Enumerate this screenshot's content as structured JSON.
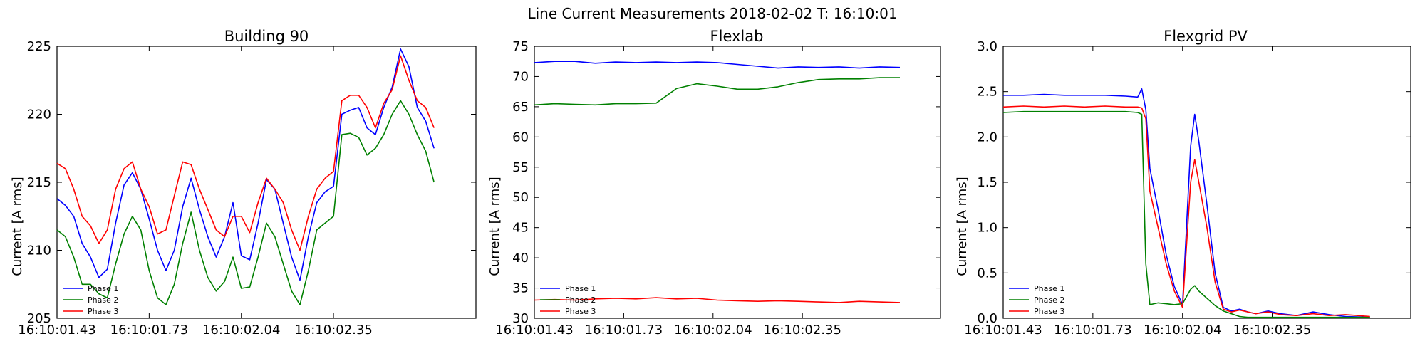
{
  "figure": {
    "suptitle": "Line Current Measurements 2018-02-02 T: 16:10:01"
  },
  "chart_data": [
    {
      "type": "line",
      "title": "Building 90",
      "xlabel": "",
      "ylabel": "Current [A rms]",
      "xlim": [
        0,
        1.0
      ],
      "ylim": [
        205,
        225
      ],
      "xticks": [
        0,
        0.22,
        0.44,
        0.66
      ],
      "xtick_labels": [
        "16:10:01.43",
        "16:10:01.73",
        "16:10:02.04",
        "16:10:02.35"
      ],
      "yticks": [
        205,
        210,
        215,
        220,
        225
      ],
      "ytick_labels": [
        "205",
        "210",
        "215",
        "220",
        "225"
      ],
      "legend": "lower-left",
      "x": [
        0,
        0.02,
        0.04,
        0.06,
        0.08,
        0.1,
        0.12,
        0.14,
        0.16,
        0.18,
        0.2,
        0.22,
        0.24,
        0.26,
        0.28,
        0.3,
        0.32,
        0.34,
        0.36,
        0.38,
        0.4,
        0.42,
        0.44,
        0.46,
        0.48,
        0.5,
        0.52,
        0.54,
        0.56,
        0.58,
        0.6,
        0.62,
        0.64,
        0.66,
        0.68,
        0.7,
        0.72,
        0.74,
        0.76,
        0.78,
        0.8,
        0.82,
        0.84,
        0.86,
        0.88,
        0.9
      ],
      "series": [
        {
          "name": "Phase 1",
          "color": "#0000ff",
          "values": [
            213.8,
            213.3,
            212.5,
            210.5,
            209.5,
            208.0,
            208.6,
            212.0,
            214.8,
            215.7,
            214.5,
            212.3,
            210.0,
            208.5,
            210.0,
            213.2,
            215.3,
            213.0,
            211.0,
            209.5,
            211.0,
            213.5,
            209.6,
            209.3,
            212.0,
            215.2,
            214.5,
            212.0,
            209.5,
            207.8,
            211.0,
            213.5,
            214.3,
            214.7,
            220.0,
            220.3,
            220.5,
            219.0,
            218.5,
            220.5,
            222.0,
            224.8,
            223.5,
            220.5,
            219.5,
            217.5
          ]
        },
        {
          "name": "Phase 2",
          "color": "#008000",
          "values": [
            211.5,
            211.0,
            209.5,
            207.5,
            207.5,
            206.8,
            206.5,
            209.0,
            211.2,
            212.5,
            211.5,
            208.5,
            206.5,
            206.0,
            207.5,
            210.5,
            212.8,
            210.0,
            208.0,
            207.0,
            207.7,
            209.5,
            207.2,
            207.3,
            209.5,
            212.0,
            211.0,
            209.0,
            207.0,
            206.0,
            208.5,
            211.5,
            212.0,
            212.5,
            218.5,
            218.6,
            218.3,
            217.0,
            217.5,
            218.5,
            220.0,
            221.0,
            220.0,
            218.5,
            217.3,
            215.0
          ]
        },
        {
          "name": "Phase 3",
          "color": "#ff0000",
          "values": [
            216.4,
            216.0,
            214.5,
            212.5,
            211.8,
            210.5,
            211.5,
            214.5,
            216.0,
            216.5,
            214.5,
            213.2,
            211.2,
            211.5,
            214.0,
            216.5,
            216.3,
            214.5,
            213.0,
            211.5,
            211.0,
            212.5,
            212.5,
            211.3,
            213.5,
            215.3,
            214.5,
            213.5,
            211.5,
            210.0,
            212.5,
            214.5,
            215.3,
            215.8,
            221.0,
            221.4,
            221.4,
            220.5,
            219.0,
            220.8,
            221.8,
            224.3,
            222.5,
            221.0,
            220.5,
            219.0
          ]
        }
      ]
    },
    {
      "type": "line",
      "title": "Flexlab",
      "xlabel": "",
      "ylabel": "Current [A rms]",
      "xlim": [
        0,
        1.0
      ],
      "ylim": [
        30,
        75
      ],
      "xticks": [
        0,
        0.22,
        0.44,
        0.66
      ],
      "xtick_labels": [
        "16:10:01.43",
        "16:10:01.73",
        "16:10:02.04",
        "16:10:02.35"
      ],
      "yticks": [
        30,
        35,
        40,
        45,
        50,
        55,
        60,
        65,
        70,
        75
      ],
      "ytick_labels": [
        "30",
        "35",
        "40",
        "45",
        "50",
        "55",
        "60",
        "65",
        "70",
        "75"
      ],
      "legend": "lower-left",
      "x": [
        0,
        0.05,
        0.1,
        0.15,
        0.2,
        0.25,
        0.3,
        0.35,
        0.4,
        0.45,
        0.5,
        0.55,
        0.6,
        0.65,
        0.7,
        0.75,
        0.8,
        0.85,
        0.9
      ],
      "series": [
        {
          "name": "Phase 1",
          "color": "#0000ff",
          "values": [
            72.3,
            72.5,
            72.5,
            72.2,
            72.4,
            72.3,
            72.4,
            72.3,
            72.4,
            72.3,
            72.0,
            71.7,
            71.4,
            71.6,
            71.5,
            71.6,
            71.4,
            71.6,
            71.5
          ]
        },
        {
          "name": "Phase 2",
          "color": "#008000",
          "values": [
            65.3,
            65.5,
            65.4,
            65.3,
            65.5,
            65.5,
            65.6,
            68.0,
            68.8,
            68.4,
            67.9,
            67.9,
            68.3,
            69.0,
            69.5,
            69.6,
            69.6,
            69.8,
            69.8
          ]
        },
        {
          "name": "Phase 3",
          "color": "#ff0000",
          "values": [
            33.0,
            33.1,
            33.0,
            33.2,
            33.3,
            33.2,
            33.4,
            33.2,
            33.3,
            33.0,
            32.9,
            32.8,
            32.9,
            32.8,
            32.7,
            32.6,
            32.8,
            32.7,
            32.6
          ]
        }
      ]
    },
    {
      "type": "line",
      "title": "Flexgrid PV",
      "xlabel": "",
      "ylabel": "Current [A rms]",
      "xlim": [
        0,
        1.0
      ],
      "ylim": [
        0.0,
        3.0
      ],
      "xticks": [
        0,
        0.22,
        0.44,
        0.66
      ],
      "xtick_labels": [
        "16:10:01.43",
        "16:10:01.73",
        "16:10:02.04",
        "16:10:02.35"
      ],
      "yticks": [
        0.0,
        0.5,
        1.0,
        1.5,
        2.0,
        2.5,
        3.0
      ],
      "ytick_labels": [
        "0.0",
        "0.5",
        "1.0",
        "1.5",
        "2.0",
        "2.5",
        "3.0"
      ],
      "legend": "lower-left",
      "x": [
        0,
        0.05,
        0.1,
        0.15,
        0.2,
        0.25,
        0.3,
        0.33,
        0.34,
        0.35,
        0.36,
        0.38,
        0.4,
        0.42,
        0.44,
        0.46,
        0.47,
        0.48,
        0.5,
        0.52,
        0.54,
        0.56,
        0.58,
        0.6,
        0.62,
        0.65,
        0.68,
        0.72,
        0.76,
        0.8,
        0.84,
        0.9
      ],
      "series": [
        {
          "name": "Phase 1",
          "color": "#0000ff",
          "values": [
            2.46,
            2.46,
            2.47,
            2.46,
            2.46,
            2.46,
            2.45,
            2.44,
            2.53,
            2.3,
            1.65,
            1.2,
            0.7,
            0.35,
            0.15,
            1.9,
            2.25,
            1.95,
            1.25,
            0.5,
            0.12,
            0.08,
            0.1,
            0.07,
            0.05,
            0.08,
            0.05,
            0.03,
            0.07,
            0.04,
            0.02,
            0.01
          ]
        },
        {
          "name": "Phase 2",
          "color": "#008000",
          "values": [
            2.27,
            2.28,
            2.28,
            2.28,
            2.28,
            2.28,
            2.28,
            2.27,
            2.25,
            0.6,
            0.15,
            0.17,
            0.16,
            0.15,
            0.16,
            0.32,
            0.36,
            0.3,
            0.22,
            0.14,
            0.08,
            0.05,
            0.02,
            0.01,
            0.01,
            0.01,
            0.01,
            0.01,
            0.01,
            0.01,
            0.01,
            0.01
          ]
        },
        {
          "name": "Phase 3",
          "color": "#ff0000",
          "values": [
            2.33,
            2.34,
            2.33,
            2.34,
            2.33,
            2.34,
            2.33,
            2.33,
            2.32,
            2.2,
            1.4,
            1.0,
            0.6,
            0.3,
            0.12,
            1.5,
            1.75,
            1.5,
            1.0,
            0.4,
            0.1,
            0.07,
            0.09,
            0.07,
            0.05,
            0.07,
            0.04,
            0.03,
            0.05,
            0.03,
            0.04,
            0.02
          ]
        }
      ]
    }
  ]
}
